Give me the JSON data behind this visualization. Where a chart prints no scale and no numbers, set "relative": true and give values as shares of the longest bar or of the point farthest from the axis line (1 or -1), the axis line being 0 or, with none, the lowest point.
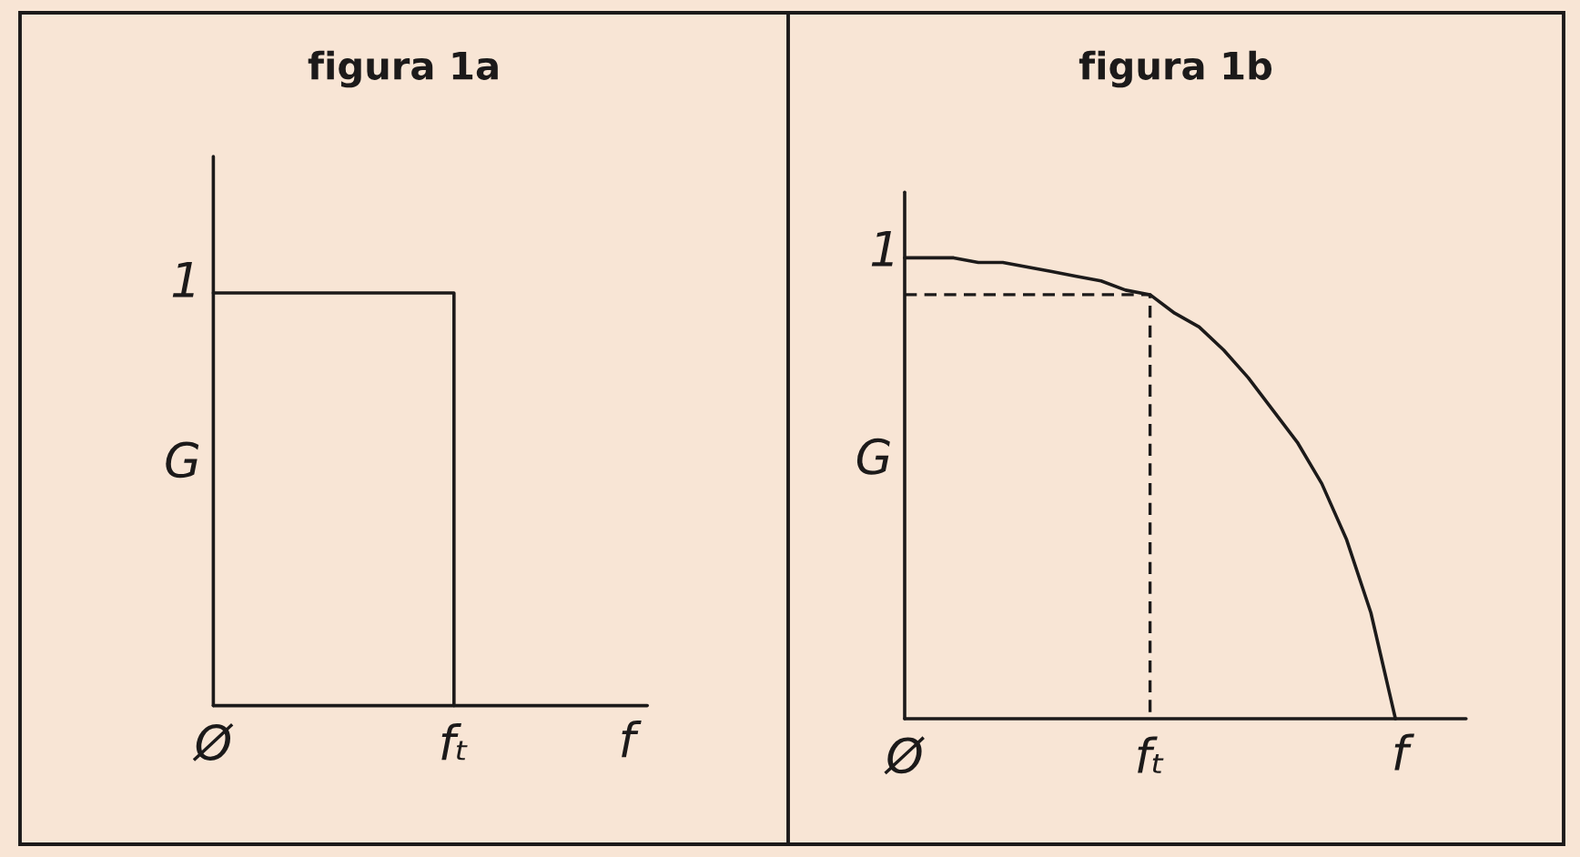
{
  "chart_data": [
    {
      "type": "step",
      "relative": true,
      "title": "figura 1a",
      "xlabel": "f",
      "ylabel": "G",
      "categories": [
        "Ø",
        null,
        null,
        null,
        "fₜ"
      ],
      "series": [
        {
          "color": "#1c1a1a",
          "values": [
            1,
            1,
            1,
            1,
            0
          ]
        }
      ],
      "annotations": [
        "1"
      ]
    },
    {
      "type": "line",
      "relative": true,
      "title": "figura 1b",
      "xlabel": "f",
      "ylabel": "G",
      "categories": [
        "Ø",
        null,
        null,
        null,
        null,
        null,
        null,
        null,
        null,
        null,
        "fₜ",
        null,
        null,
        null,
        null,
        null,
        null,
        null,
        null,
        null,
        null
      ],
      "series": [
        {
          "color": "#1c1a1a",
          "values": [
            1,
            1,
            1,
            0.99,
            0.99,
            0.98,
            0.97,
            0.96,
            0.95,
            0.93,
            0.92,
            0.88,
            0.85,
            0.8,
            0.74,
            0.67,
            0.6,
            0.51,
            0.39,
            0.23,
            0
          ]
        },
        {
          "type": "step",
          "color": "#1c1a1a",
          "line_style": "dashed",
          "values": [
            0.92,
            0.92,
            0.92,
            0.92,
            0.92,
            0.92,
            0.92,
            0.92,
            0.92,
            0.92,
            0,
            null,
            null,
            null,
            null,
            null,
            null,
            null,
            null,
            null,
            null
          ]
        }
      ],
      "annotations": [
        "1"
      ]
    }
  ]
}
